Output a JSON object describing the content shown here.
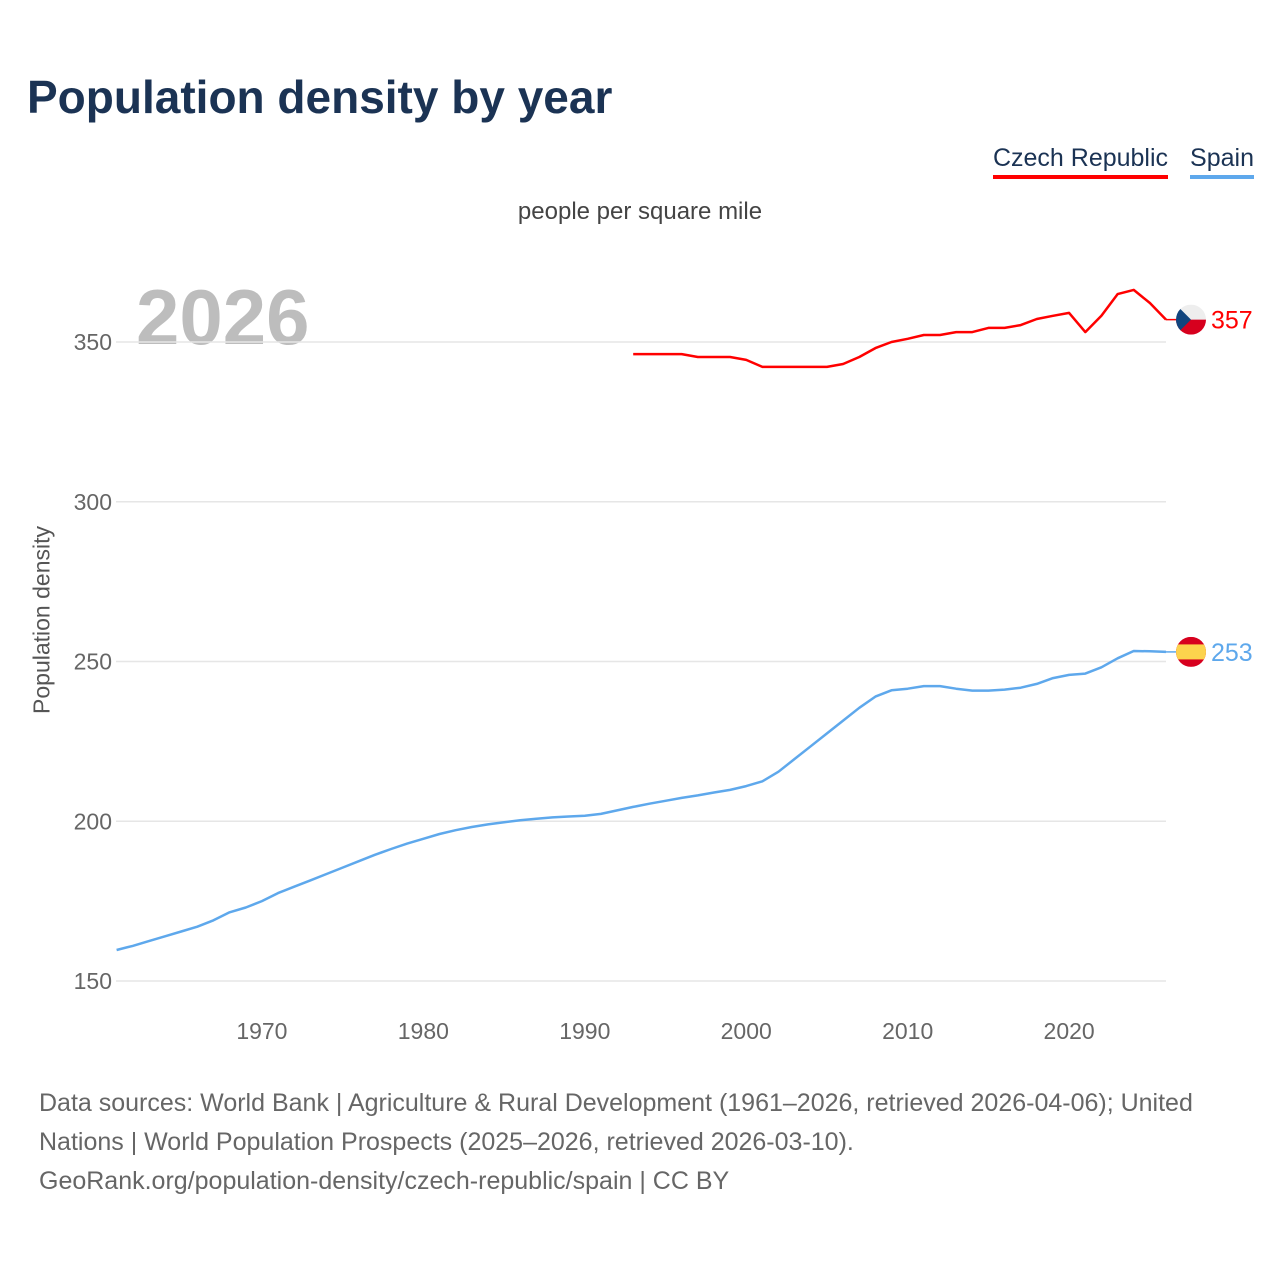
{
  "title": "Population density by year",
  "legend": [
    {
      "label": "Czech Republic",
      "color": "#ff0000"
    },
    {
      "label": "Spain",
      "color": "#5ea8ec"
    }
  ],
  "current_year": "2026",
  "footer": {
    "line1": "Data sources: World Bank | Agriculture & Rural Development (1961–2026, retrieved 2026-04-06); United Nations | World Population Prospects (2025–2026, retrieved 2026-03-10).",
    "line2": "GeoRank.org/population-density/czech-republic/spain | CC BY"
  },
  "chart_data": {
    "type": "line",
    "title": "Population density by year",
    "subtitle": "people per square mile",
    "xlabel": "",
    "ylabel": "Population density",
    "xlim": [
      1961,
      2026
    ],
    "ylim": [
      150,
      370
    ],
    "xticks": [
      1970,
      1980,
      1990,
      2000,
      2010,
      2020
    ],
    "yticks": [
      150,
      200,
      250,
      300,
      350
    ],
    "grid": true,
    "legend_position": "top-right",
    "series": [
      {
        "name": "Czech Republic",
        "color": "#ff0000",
        "end_label": "357",
        "x": [
          1993,
          1994,
          1995,
          1996,
          1997,
          1998,
          1999,
          2000,
          2001,
          2002,
          2003,
          2004,
          2005,
          2006,
          2007,
          2008,
          2009,
          2010,
          2011,
          2012,
          2013,
          2014,
          2015,
          2016,
          2017,
          2018,
          2019,
          2020,
          2021,
          2022,
          2023,
          2024,
          2025,
          2026
        ],
        "y": [
          346.2,
          346.2,
          346.2,
          346.2,
          345.3,
          345.3,
          345.3,
          344.4,
          342.2,
          342.2,
          342.2,
          342.2,
          342.2,
          343.1,
          345.3,
          348.1,
          350,
          351,
          352.2,
          352.2,
          353.1,
          353.1,
          354.4,
          354.4,
          355.3,
          357.2,
          358.2,
          359.1,
          353.1,
          358.2,
          365,
          366.3,
          362.2,
          357
        ]
      },
      {
        "name": "Spain",
        "color": "#5ea8ec",
        "end_label": "253",
        "x": [
          1961,
          1962,
          1963,
          1964,
          1965,
          1966,
          1967,
          1968,
          1969,
          1970,
          1971,
          1972,
          1973,
          1974,
          1975,
          1976,
          1977,
          1978,
          1979,
          1980,
          1981,
          1982,
          1983,
          1984,
          1985,
          1986,
          1987,
          1988,
          1989,
          1990,
          1991,
          1992,
          1993,
          1994,
          1995,
          1996,
          1997,
          1998,
          1999,
          2000,
          2001,
          2002,
          2003,
          2004,
          2005,
          2006,
          2007,
          2008,
          2009,
          2010,
          2011,
          2012,
          2013,
          2014,
          2015,
          2016,
          2017,
          2018,
          2019,
          2020,
          2021,
          2022,
          2023,
          2024,
          2025,
          2026
        ],
        "y": [
          159.7,
          161,
          162.5,
          164,
          165.5,
          167,
          169,
          171.5,
          173,
          175,
          177.5,
          179.5,
          181.5,
          183.5,
          185.5,
          187.5,
          189.5,
          191.3,
          193,
          194.5,
          196,
          197.2,
          198.2,
          199,
          199.7,
          200.3,
          200.8,
          201.2,
          201.5,
          201.7,
          202.3,
          203.4,
          204.5,
          205.5,
          206.4,
          207.3,
          208.1,
          209,
          209.8,
          211,
          212.5,
          215.5,
          219.5,
          223.5,
          227.5,
          231.5,
          235.5,
          239,
          241,
          241.5,
          242.3,
          242.3,
          241.5,
          240.9,
          240.9,
          241.2,
          241.8,
          243,
          244.8,
          245.8,
          246.2,
          248.2,
          251,
          253.3,
          253.2,
          253
        ]
      }
    ]
  }
}
